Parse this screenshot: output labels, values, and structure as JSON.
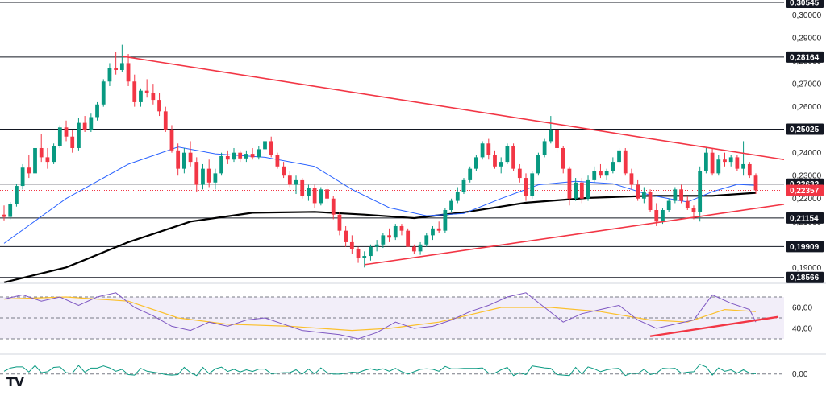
{
  "chart_data": [
    {
      "type": "candlestick",
      "ylim": [
        0.1845,
        0.3065
      ],
      "y_ticks": [
        "0,30000",
        "0,29000",
        "0,28000",
        "0,27000",
        "0,26000",
        "0,25000",
        "0,24000",
        "0,23000",
        "0,22000",
        "0,21000",
        "0,20000",
        "0,19000"
      ],
      "horizontal_levels": [
        {
          "value": 0.30545,
          "label": "0,30545"
        },
        {
          "value": 0.28164,
          "label": "0,28164"
        },
        {
          "value": 0.25025,
          "label": "0,25025"
        },
        {
          "value": 0.22632,
          "label": "0,22632"
        },
        {
          "value": 0.21154,
          "label": "0,21154"
        },
        {
          "value": 0.19909,
          "label": "0,19909"
        },
        {
          "value": 0.18566,
          "label": "0,18566"
        }
      ],
      "current_price": {
        "value": 0.22357,
        "label": "0,22357"
      },
      "candles": [
        [
          0.213,
          0.217,
          0.2105,
          0.212
        ],
        [
          0.212,
          0.2185,
          0.211,
          0.2175
        ],
        [
          0.2175,
          0.2265,
          0.2165,
          0.2255
        ],
        [
          0.2255,
          0.235,
          0.224,
          0.2335
        ],
        [
          0.2335,
          0.239,
          0.229,
          0.231
        ],
        [
          0.231,
          0.243,
          0.23,
          0.242
        ],
        [
          0.242,
          0.248,
          0.236,
          0.238
        ],
        [
          0.238,
          0.242,
          0.233,
          0.236
        ],
        [
          0.236,
          0.244,
          0.235,
          0.243
        ],
        [
          0.243,
          0.252,
          0.242,
          0.251
        ],
        [
          0.251,
          0.254,
          0.245,
          0.247
        ],
        [
          0.247,
          0.25,
          0.24,
          0.242
        ],
        [
          0.242,
          0.255,
          0.241,
          0.253
        ],
        [
          0.253,
          0.256,
          0.249,
          0.25
        ],
        [
          0.25,
          0.257,
          0.249,
          0.2555
        ],
        [
          0.2555,
          0.262,
          0.254,
          0.261
        ],
        [
          0.261,
          0.272,
          0.26,
          0.271
        ],
        [
          0.271,
          0.279,
          0.269,
          0.277
        ],
        [
          0.277,
          0.284,
          0.274,
          0.276
        ],
        [
          0.276,
          0.287,
          0.275,
          0.279
        ],
        [
          0.279,
          0.283,
          0.269,
          0.271
        ],
        [
          0.271,
          0.274,
          0.26,
          0.262
        ],
        [
          0.262,
          0.268,
          0.26,
          0.267
        ],
        [
          0.267,
          0.272,
          0.264,
          0.266
        ],
        [
          0.266,
          0.27,
          0.261,
          0.263
        ],
        [
          0.263,
          0.266,
          0.256,
          0.258
        ],
        [
          0.258,
          0.26,
          0.249,
          0.25
        ],
        [
          0.25,
          0.252,
          0.24,
          0.241
        ],
        [
          0.241,
          0.244,
          0.23,
          0.233
        ],
        [
          0.233,
          0.242,
          0.231,
          0.24
        ],
        [
          0.24,
          0.245,
          0.234,
          0.236
        ],
        [
          0.236,
          0.238,
          0.223,
          0.226
        ],
        [
          0.226,
          0.235,
          0.224,
          0.233
        ],
        [
          0.233,
          0.237,
          0.225,
          0.227
        ],
        [
          0.227,
          0.233,
          0.224,
          0.231
        ],
        [
          0.231,
          0.24,
          0.23,
          0.2385
        ],
        [
          0.2385,
          0.241,
          0.235,
          0.237
        ],
        [
          0.237,
          0.242,
          0.236,
          0.24
        ],
        [
          0.24,
          0.241,
          0.236,
          0.2375
        ],
        [
          0.2375,
          0.241,
          0.236,
          0.2395
        ],
        [
          0.2395,
          0.242,
          0.237,
          0.238
        ],
        [
          0.238,
          0.243,
          0.237,
          0.2415
        ],
        [
          0.2415,
          0.247,
          0.24,
          0.245
        ],
        [
          0.245,
          0.247,
          0.238,
          0.239
        ],
        [
          0.239,
          0.24,
          0.233,
          0.234
        ],
        [
          0.234,
          0.236,
          0.229,
          0.23
        ],
        [
          0.23,
          0.232,
          0.225,
          0.226
        ],
        [
          0.226,
          0.23,
          0.222,
          0.228
        ],
        [
          0.228,
          0.229,
          0.22,
          0.221
        ],
        [
          0.221,
          0.226,
          0.219,
          0.2245
        ],
        [
          0.2245,
          0.226,
          0.216,
          0.218
        ],
        [
          0.218,
          0.225,
          0.217,
          0.224
        ],
        [
          0.224,
          0.226,
          0.218,
          0.22
        ],
        [
          0.22,
          0.221,
          0.211,
          0.213
        ],
        [
          0.213,
          0.214,
          0.204,
          0.206
        ],
        [
          0.206,
          0.208,
          0.199,
          0.201
        ],
        [
          0.201,
          0.204,
          0.196,
          0.198
        ],
        [
          0.198,
          0.199,
          0.192,
          0.194
        ],
        [
          0.194,
          0.197,
          0.19,
          0.195
        ],
        [
          0.195,
          0.2,
          0.193,
          0.199
        ],
        [
          0.199,
          0.202,
          0.197,
          0.2
        ],
        [
          0.2,
          0.205,
          0.1985,
          0.204
        ],
        [
          0.204,
          0.207,
          0.201,
          0.203
        ],
        [
          0.203,
          0.209,
          0.202,
          0.208
        ],
        [
          0.208,
          0.209,
          0.204,
          0.206
        ],
        [
          0.206,
          0.207,
          0.199,
          0.199
        ],
        [
          0.199,
          0.2,
          0.196,
          0.197
        ],
        [
          0.197,
          0.201,
          0.1955,
          0.2
        ],
        [
          0.2,
          0.205,
          0.199,
          0.204
        ],
        [
          0.204,
          0.208,
          0.202,
          0.207
        ],
        [
          0.207,
          0.21,
          0.205,
          0.206
        ],
        [
          0.206,
          0.216,
          0.205,
          0.215
        ],
        [
          0.215,
          0.22,
          0.214,
          0.219
        ],
        [
          0.219,
          0.225,
          0.218,
          0.223
        ],
        [
          0.223,
          0.229,
          0.222,
          0.228
        ],
        [
          0.228,
          0.234,
          0.227,
          0.233
        ],
        [
          0.233,
          0.239,
          0.232,
          0.238
        ],
        [
          0.238,
          0.245,
          0.237,
          0.244
        ],
        [
          0.244,
          0.246,
          0.237,
          0.239
        ],
        [
          0.239,
          0.241,
          0.233,
          0.234
        ],
        [
          0.234,
          0.238,
          0.231,
          0.236
        ],
        [
          0.236,
          0.244,
          0.235,
          0.243
        ],
        [
          0.243,
          0.244,
          0.232,
          0.233
        ],
        [
          0.233,
          0.235,
          0.227,
          0.229
        ],
        [
          0.229,
          0.231,
          0.219,
          0.221
        ],
        [
          0.221,
          0.232,
          0.22,
          0.231
        ],
        [
          0.231,
          0.24,
          0.23,
          0.239
        ],
        [
          0.239,
          0.246,
          0.238,
          0.245
        ],
        [
          0.245,
          0.256,
          0.244,
          0.25
        ],
        [
          0.25,
          0.251,
          0.24,
          0.242
        ],
        [
          0.242,
          0.243,
          0.231,
          0.233
        ],
        [
          0.233,
          0.234,
          0.217,
          0.22
        ],
        [
          0.22,
          0.229,
          0.219,
          0.227
        ],
        [
          0.227,
          0.229,
          0.218,
          0.22
        ],
        [
          0.22,
          0.23,
          0.219,
          0.228
        ],
        [
          0.228,
          0.234,
          0.227,
          0.232
        ],
        [
          0.232,
          0.235,
          0.229,
          0.23
        ],
        [
          0.23,
          0.233,
          0.228,
          0.232
        ],
        [
          0.232,
          0.238,
          0.231,
          0.236
        ],
        [
          0.236,
          0.242,
          0.235,
          0.241
        ],
        [
          0.241,
          0.242,
          0.23,
          0.231
        ],
        [
          0.231,
          0.233,
          0.224,
          0.226
        ],
        [
          0.226,
          0.228,
          0.219,
          0.22
        ],
        [
          0.22,
          0.225,
          0.218,
          0.223
        ],
        [
          0.223,
          0.224,
          0.214,
          0.215
        ],
        [
          0.215,
          0.218,
          0.208,
          0.21
        ],
        [
          0.21,
          0.216,
          0.209,
          0.215
        ],
        [
          0.215,
          0.22,
          0.214,
          0.219
        ],
        [
          0.219,
          0.225,
          0.218,
          0.224
        ],
        [
          0.224,
          0.226,
          0.218,
          0.219
        ],
        [
          0.219,
          0.221,
          0.215,
          0.216
        ],
        [
          0.216,
          0.217,
          0.211,
          0.214
        ],
        [
          0.214,
          0.234,
          0.21,
          0.232
        ],
        [
          0.232,
          0.242,
          0.231,
          0.24
        ],
        [
          0.24,
          0.242,
          0.23,
          0.231
        ],
        [
          0.231,
          0.239,
          0.23,
          0.237
        ],
        [
          0.237,
          0.24,
          0.234,
          0.236
        ],
        [
          0.236,
          0.239,
          0.234,
          0.238
        ],
        [
          0.238,
          0.239,
          0.232,
          0.233
        ],
        [
          0.233,
          0.245,
          0.23,
          0.235
        ],
        [
          0.235,
          0.236,
          0.229,
          0.23
        ],
        [
          0.23,
          0.231,
          0.222,
          0.2236
        ]
      ],
      "lines": {
        "blue_ma": [
          [
            0,
            0.2005
          ],
          [
            10,
            0.22
          ],
          [
            20,
            0.235
          ],
          [
            28,
            0.2425
          ],
          [
            34,
            0.2395
          ],
          [
            42,
            0.238
          ],
          [
            50,
            0.234
          ],
          [
            56,
            0.224
          ],
          [
            62,
            0.216
          ],
          [
            68,
            0.2125
          ],
          [
            74,
            0.2135
          ],
          [
            80,
            0.22
          ],
          [
            86,
            0.226
          ],
          [
            92,
            0.2275
          ],
          [
            98,
            0.2265
          ],
          [
            104,
            0.2215
          ],
          [
            110,
            0.2185
          ],
          [
            114,
            0.223
          ],
          [
            118,
            0.2262
          ],
          [
            121,
            0.2258
          ]
        ],
        "black_ma": [
          [
            0,
            0.1835
          ],
          [
            10,
            0.19
          ],
          [
            20,
            0.201
          ],
          [
            30,
            0.21
          ],
          [
            40,
            0.2138
          ],
          [
            50,
            0.2142
          ],
          [
            58,
            0.213
          ],
          [
            66,
            0.2115
          ],
          [
            74,
            0.214
          ],
          [
            84,
            0.2182
          ],
          [
            94,
            0.2203
          ],
          [
            104,
            0.2212
          ],
          [
            114,
            0.2212
          ],
          [
            121,
            0.2225
          ]
        ]
      },
      "trendlines": [
        {
          "from": [
            19,
            0.282
          ],
          "to": [
            "right",
            0.237
          ]
        },
        {
          "from": [
            58,
            0.1912
          ],
          "to": [
            "right",
            0.2175
          ]
        }
      ]
    },
    {
      "type": "line",
      "ylim": [
        20,
        80
      ],
      "y_ticks": [
        "60,00",
        "40,00"
      ],
      "band": [
        30,
        70
      ],
      "midline": 50,
      "rsi": [
        [
          0,
          68
        ],
        [
          3,
          72
        ],
        [
          6,
          66
        ],
        [
          9,
          70
        ],
        [
          12,
          62
        ],
        [
          15,
          70
        ],
        [
          18,
          74
        ],
        [
          21,
          60
        ],
        [
          24,
          52
        ],
        [
          27,
          42
        ],
        [
          30,
          38
        ],
        [
          33,
          46
        ],
        [
          36,
          42
        ],
        [
          39,
          48
        ],
        [
          42,
          50
        ],
        [
          45,
          44
        ],
        [
          48,
          38
        ],
        [
          51,
          36
        ],
        [
          54,
          34
        ],
        [
          57,
          30
        ],
        [
          60,
          36
        ],
        [
          63,
          46
        ],
        [
          66,
          40
        ],
        [
          69,
          42
        ],
        [
          72,
          48
        ],
        [
          75,
          56
        ],
        [
          78,
          62
        ],
        [
          81,
          70
        ],
        [
          84,
          74
        ],
        [
          87,
          60
        ],
        [
          90,
          46
        ],
        [
          93,
          54
        ],
        [
          96,
          58
        ],
        [
          99,
          62
        ],
        [
          102,
          48
        ],
        [
          105,
          40
        ],
        [
          108,
          44
        ],
        [
          111,
          48
        ],
        [
          114,
          72
        ],
        [
          117,
          64
        ],
        [
          120,
          58
        ],
        [
          121,
          46
        ]
      ],
      "signal": [
        [
          0,
          68
        ],
        [
          10,
          70
        ],
        [
          20,
          66
        ],
        [
          28,
          50
        ],
        [
          36,
          44
        ],
        [
          46,
          42
        ],
        [
          56,
          38
        ],
        [
          62,
          40
        ],
        [
          70,
          46
        ],
        [
          80,
          60
        ],
        [
          88,
          60
        ],
        [
          96,
          56
        ],
        [
          104,
          48
        ],
        [
          110,
          46
        ],
        [
          116,
          58
        ],
        [
          121,
          56
        ]
      ],
      "trendline": {
        "from": [
          104,
          32.5
        ],
        "to": [
          "right",
          51
        ]
      }
    },
    {
      "type": "line",
      "y_ticks": [
        "0,00"
      ],
      "zero": 0
    }
  ]
}
